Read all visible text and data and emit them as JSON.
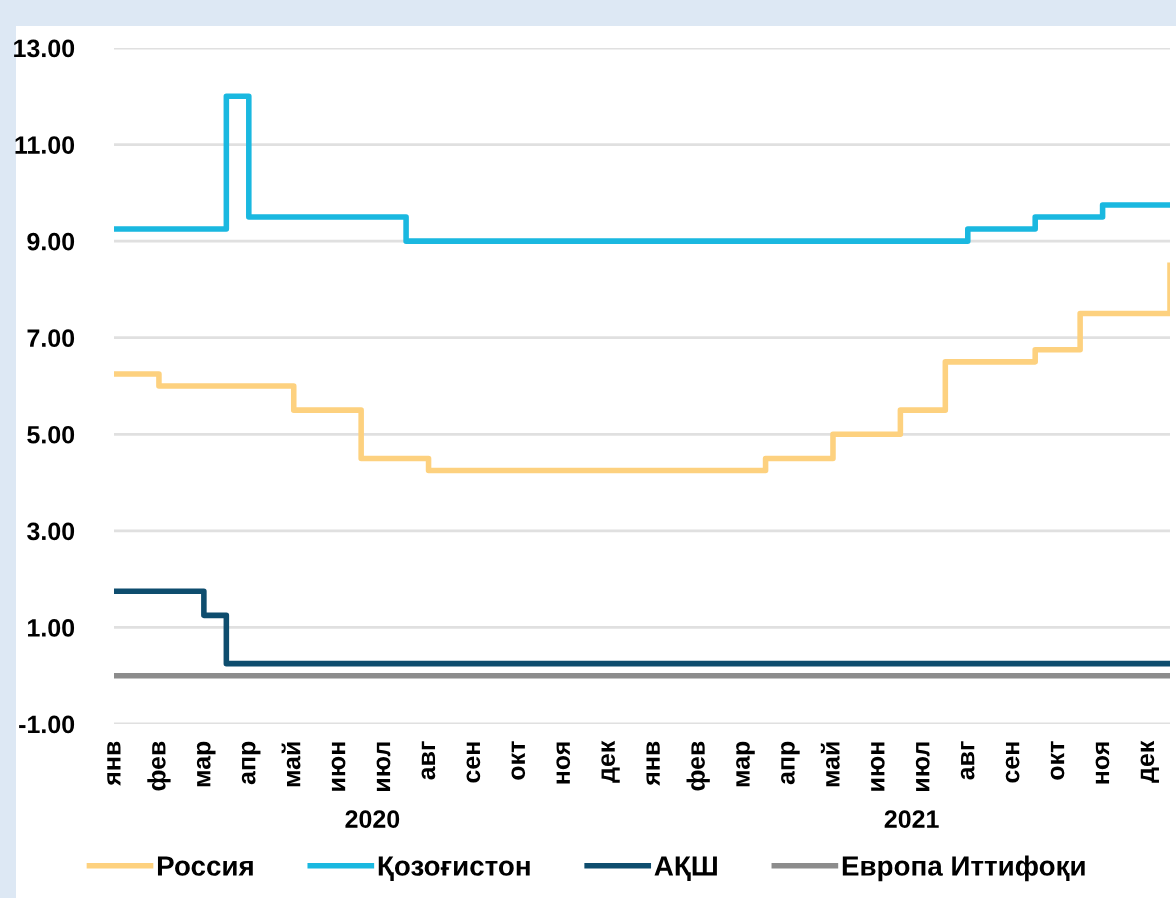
{
  "chart_data": {
    "type": "step",
    "categories": [
      "янв",
      null,
      "фев",
      null,
      "мар",
      null,
      "апр",
      null,
      "май",
      null,
      "июн",
      null,
      "июл",
      null,
      "авг",
      null,
      "сен",
      null,
      "окт",
      null,
      "ноя",
      null,
      "дек",
      null,
      "янв",
      null,
      "фев",
      null,
      "мар",
      null,
      "апр",
      null,
      "май",
      null,
      "июн",
      null,
      "июл",
      null,
      "авг",
      null,
      "сен",
      null,
      "окт",
      null,
      "ноя",
      null,
      "дек",
      null
    ],
    "annotations": [
      "2020",
      "2021"
    ],
    "ylim": [
      -1,
      13
    ],
    "yticks": [
      {
        "value": -1,
        "label": "-1.00"
      },
      {
        "value": 1,
        "label": "1.00"
      },
      {
        "value": 3,
        "label": "3.00"
      },
      {
        "value": 5,
        "label": "5.00"
      },
      {
        "value": 7,
        "label": "7.00"
      },
      {
        "value": 9,
        "label": "9.00"
      },
      {
        "value": 11,
        "label": "11.00"
      },
      {
        "value": 13,
        "label": "13.00"
      }
    ],
    "grid": "y",
    "legend": "bottom",
    "series": [
      {
        "name": "Россия",
        "color": "#fdd17f",
        "values": [
          6.25,
          6.25,
          6.0,
          6.0,
          6.0,
          6.0,
          6.0,
          6.0,
          5.5,
          5.5,
          5.5,
          4.5,
          4.5,
          4.5,
          4.25,
          4.25,
          4.25,
          4.25,
          4.25,
          4.25,
          4.25,
          4.25,
          4.25,
          4.25,
          4.25,
          4.25,
          4.25,
          4.25,
          4.25,
          4.5,
          4.5,
          4.5,
          5.0,
          5.0,
          5.0,
          5.5,
          5.5,
          6.5,
          6.5,
          6.5,
          6.5,
          6.75,
          6.75,
          7.5,
          7.5,
          7.5,
          7.5,
          8.5
        ]
      },
      {
        "name": "Қозоғистон",
        "color": "#1ab8e0",
        "values": [
          9.25,
          9.25,
          9.25,
          9.25,
          9.25,
          12.0,
          9.5,
          9.5,
          9.5,
          9.5,
          9.5,
          9.5,
          9.5,
          9.0,
          9.0,
          9.0,
          9.0,
          9.0,
          9.0,
          9.0,
          9.0,
          9.0,
          9.0,
          9.0,
          9.0,
          9.0,
          9.0,
          9.0,
          9.0,
          9.0,
          9.0,
          9.0,
          9.0,
          9.0,
          9.0,
          9.0,
          9.0,
          9.0,
          9.25,
          9.25,
          9.25,
          9.5,
          9.5,
          9.5,
          9.75,
          9.75,
          9.75,
          9.75
        ]
      },
      {
        "name": "АҚШ",
        "color": "#0e4d6e",
        "values": [
          1.75,
          1.75,
          1.75,
          1.75,
          1.25,
          0.25,
          0.25,
          0.25,
          0.25,
          0.25,
          0.25,
          0.25,
          0.25,
          0.25,
          0.25,
          0.25,
          0.25,
          0.25,
          0.25,
          0.25,
          0.25,
          0.25,
          0.25,
          0.25,
          0.25,
          0.25,
          0.25,
          0.25,
          0.25,
          0.25,
          0.25,
          0.25,
          0.25,
          0.25,
          0.25,
          0.25,
          0.25,
          0.25,
          0.25,
          0.25,
          0.25,
          0.25,
          0.25,
          0.25,
          0.25,
          0.25,
          0.25,
          0.25
        ]
      },
      {
        "name": "Европа Иттифоқи",
        "color": "#8c8c8c",
        "values": [
          0.0,
          0.0,
          0.0,
          0.0,
          0.0,
          0.0,
          0.0,
          0.0,
          0.0,
          0.0,
          0.0,
          0.0,
          0.0,
          0.0,
          0.0,
          0.0,
          0.0,
          0.0,
          0.0,
          0.0,
          0.0,
          0.0,
          0.0,
          0.0,
          0.0,
          0.0,
          0.0,
          0.0,
          0.0,
          0.0,
          0.0,
          0.0,
          0.0,
          0.0,
          0.0,
          0.0,
          0.0,
          0.0,
          0.0,
          0.0,
          0.0,
          0.0,
          0.0,
          0.0,
          0.0,
          0.0,
          0.0,
          0.0
        ]
      }
    ]
  }
}
